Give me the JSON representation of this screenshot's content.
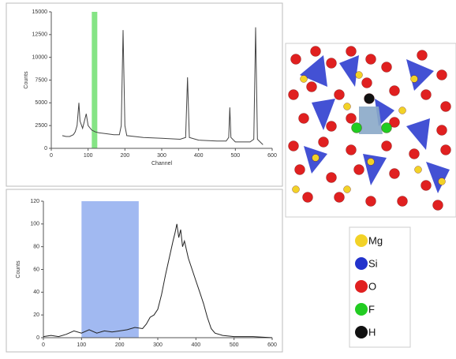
{
  "chart_data": [
    {
      "type": "line",
      "x_label": "Channel",
      "y_label": "Counts",
      "color": "#444444",
      "xlim": [
        0,
        600
      ],
      "xticks": [
        0,
        100,
        200,
        300,
        400,
        500,
        600
      ],
      "ylim": [
        0,
        15000
      ],
      "yticks": [
        0,
        2500,
        5000,
        7500,
        10000,
        12500,
        15000
      ],
      "highlight": {
        "range": [
          110,
          125
        ],
        "color": "#66dd66"
      },
      "x": [
        30,
        40,
        50,
        60,
        65,
        70,
        75,
        78,
        85,
        95,
        100,
        110,
        120,
        130,
        150,
        170,
        185,
        190,
        195,
        200,
        205,
        250,
        300,
        350,
        365,
        370,
        375,
        400,
        450,
        475,
        482,
        485,
        488,
        500,
        540,
        550,
        555,
        560,
        570,
        575
      ],
      "values": [
        1400,
        1300,
        1300,
        1500,
        1800,
        2500,
        5000,
        3000,
        2200,
        3800,
        2500,
        2000,
        1800,
        1700,
        1600,
        1500,
        1500,
        2500,
        13000,
        2500,
        1400,
        1200,
        1100,
        1000,
        1200,
        7800,
        1200,
        900,
        800,
        800,
        1200,
        4500,
        1200,
        700,
        700,
        1000,
        13300,
        1000,
        600,
        400
      ]
    },
    {
      "type": "line",
      "y_label": "Counts",
      "color": "#222222",
      "xlim": [
        0,
        600
      ],
      "xticks": [
        0,
        100,
        200,
        300,
        400,
        500,
        600
      ],
      "ylim": [
        0,
        120
      ],
      "yticks": [
        0,
        20,
        40,
        60,
        80,
        100,
        120
      ],
      "highlight": {
        "range": [
          100,
          250
        ],
        "color": "#8aa8ee"
      },
      "x": [
        0,
        20,
        40,
        60,
        80,
        100,
        120,
        140,
        160,
        180,
        200,
        220,
        240,
        260,
        270,
        280,
        290,
        300,
        310,
        320,
        330,
        340,
        345,
        350,
        355,
        360,
        365,
        370,
        380,
        390,
        400,
        410,
        420,
        430,
        440,
        450,
        470,
        500,
        550,
        600
      ],
      "values": [
        1,
        2,
        1,
        3,
        6,
        4,
        7,
        4,
        6,
        5,
        6,
        7,
        9,
        8,
        12,
        18,
        20,
        25,
        38,
        55,
        70,
        85,
        92,
        100,
        88,
        95,
        80,
        85,
        70,
        60,
        50,
        40,
        30,
        18,
        8,
        4,
        2,
        1,
        1,
        0
      ]
    }
  ],
  "structure_legend": [
    {
      "label": "Mg",
      "color": "#f2d227"
    },
    {
      "label": "Si",
      "color": "#2233cc"
    },
    {
      "label": "O",
      "color": "#e02020"
    },
    {
      "label": "F",
      "color": "#22cc22"
    },
    {
      "label": "H",
      "color": "#111111"
    }
  ]
}
